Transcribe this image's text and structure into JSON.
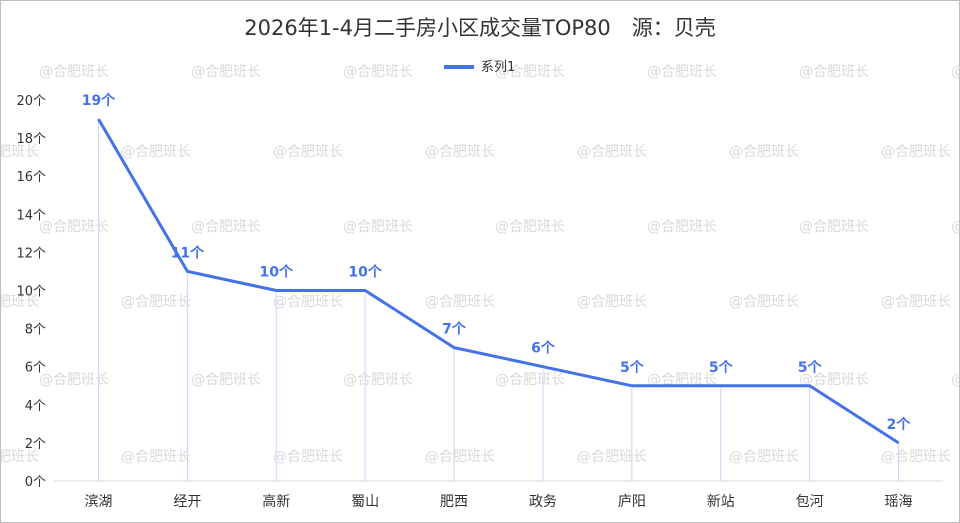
{
  "watermark_text": "@合肥班长",
  "chart_data": {
    "type": "line",
    "title": "2026年1-4月二手房小区成交量TOP80　源：贝壳",
    "categories": [
      "滨湖",
      "经开",
      "高新",
      "蜀山",
      "肥西",
      "政务",
      "庐阳",
      "新站",
      "包河",
      "瑶海"
    ],
    "series": [
      {
        "name": "系列1",
        "values": [
          19,
          11,
          10,
          10,
          7,
          6,
          5,
          5,
          5,
          2
        ],
        "labels": [
          "19个",
          "11个",
          "10个",
          "10个",
          "7个",
          "6个",
          "5个",
          "5个",
          "5个",
          "2个"
        ],
        "color": "#4472e8"
      }
    ],
    "y_ticks": [
      "0个",
      "2个",
      "4个",
      "6个",
      "8个",
      "10个",
      "12个",
      "14个",
      "16个",
      "18个",
      "20个"
    ],
    "ylim": [
      0,
      20
    ],
    "y_step": 2,
    "legend_position": "top",
    "drop_lines": true,
    "grid": false
  }
}
